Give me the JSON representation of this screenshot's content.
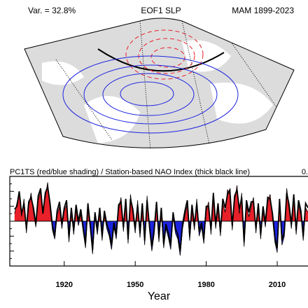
{
  "header": {
    "left": "Var. = 32.8%",
    "center": "EOF1 SLP",
    "right": "MAM 1899-2023"
  },
  "chart_data": {
    "type": "area",
    "title": "PC1TS (red/blue shading) / Station-based NAO Index (thick black line)",
    "corner_text": "0.",
    "xlabel": "Year",
    "x": [
      1899,
      1900,
      1901,
      1902,
      1903,
      1904,
      1905,
      1906,
      1907,
      1908,
      1909,
      1910,
      1911,
      1912,
      1913,
      1914,
      1915,
      1916,
      1917,
      1918,
      1919,
      1920,
      1921,
      1922,
      1923,
      1924,
      1925,
      1926,
      1927,
      1928,
      1929,
      1930,
      1931,
      1932,
      1933,
      1934,
      1935,
      1936,
      1937,
      1938,
      1939,
      1940,
      1941,
      1942,
      1943,
      1944,
      1945,
      1946,
      1947,
      1948,
      1949,
      1950,
      1951,
      1952,
      1953,
      1954,
      1955,
      1956,
      1957,
      1958,
      1959,
      1960,
      1961,
      1962,
      1963,
      1964,
      1965,
      1966,
      1967,
      1968,
      1969,
      1970,
      1971,
      1972,
      1973,
      1974,
      1975,
      1976,
      1977,
      1978,
      1979,
      1980,
      1981,
      1982,
      1983,
      1984,
      1985,
      1986,
      1987,
      1988,
      1989,
      1990,
      1991,
      1992,
      1993,
      1994,
      1995,
      1996,
      1997,
      1998,
      1999,
      2000,
      2001,
      2002,
      2003,
      2004,
      2005,
      2006,
      2007,
      2008,
      2009,
      2010,
      2011,
      2012,
      2013,
      2014,
      2015,
      2016,
      2017,
      2018,
      2019,
      2020,
      2021,
      2022,
      2023
    ],
    "series": [
      {
        "pos_color": "#e8202a",
        "neg_color": "#1d24e0",
        "values": [
          0.5,
          1.2,
          1.8,
          0.3,
          1.5,
          -0.8,
          1.0,
          1.9,
          0.6,
          -0.4,
          1.4,
          2.0,
          0.8,
          1.6,
          2.6,
          0.9,
          -0.6,
          -1.2,
          0.4,
          1.0,
          -0.5,
          0.7,
          1.1,
          -1.4,
          0.6,
          -0.9,
          0.8,
          -0.3,
          0.5,
          -0.7,
          -1.8,
          0.9,
          -0.6,
          -2.2,
          0.3,
          -0.9,
          0.6,
          -1.3,
          0.4,
          -0.5,
          -1.0,
          -1.9,
          -0.4,
          -1.2,
          0.8,
          1.6,
          -0.7,
          1.2,
          -1.5,
          1.8,
          0.5,
          -0.8,
          1.4,
          -1.1,
          0.9,
          -1.6,
          1.7,
          -0.6,
          -2.0,
          -0.9,
          1.0,
          -1.4,
          0.6,
          -1.8,
          -0.5,
          -1.1,
          -1.9,
          0.3,
          -0.8,
          -1.2,
          -2.3,
          -0.5,
          0.4,
          1.1,
          -1.3,
          0.8,
          -0.6,
          1.5,
          -1.0,
          -0.4,
          -1.5,
          0.7,
          1.3,
          -0.9,
          1.6,
          -0.5,
          0.9,
          -1.0,
          1.2,
          0.6,
          2.1,
          1.8,
          -0.6,
          1.4,
          2.4,
          0.5,
          1.9,
          -1.7,
          1.1,
          0.3,
          1.0,
          1.6,
          -0.8,
          0.9,
          -1.2,
          0.7,
          -0.4,
          1.3,
          1.8,
          0.2,
          -1.4,
          -2.1,
          1.2,
          -1.6,
          -1.0,
          2.2,
          0.8,
          -0.5,
          1.5,
          -0.9,
          1.1,
          0.4,
          -1.3,
          0.9,
          0.6
        ]
      },
      {
        "color": "#000000",
        "values": [
          0.8,
          1.0,
          2.0,
          0.5,
          1.2,
          -0.5,
          1.3,
          1.6,
          0.9,
          -0.2,
          1.7,
          2.2,
          0.5,
          1.9,
          2.3,
          1.2,
          -0.3,
          -1.0,
          0.7,
          1.3,
          -0.2,
          0.9,
          1.4,
          -1.1,
          0.9,
          -0.6,
          1.1,
          0.0,
          0.8,
          -0.4,
          -1.5,
          1.2,
          -0.3,
          -1.9,
          0.6,
          -0.6,
          0.9,
          -1.0,
          0.7,
          -0.2,
          -0.7,
          -1.6,
          -0.1,
          -0.9,
          1.1,
          1.3,
          -0.4,
          1.5,
          -1.2,
          1.5,
          0.8,
          -0.5,
          1.1,
          -0.8,
          1.2,
          -1.3,
          1.4,
          -0.3,
          -1.7,
          -0.6,
          1.3,
          -1.1,
          0.9,
          -1.5,
          -0.2,
          -0.8,
          -1.6,
          0.6,
          -0.5,
          -0.9,
          -2.0,
          -0.2,
          0.7,
          1.4,
          -1.0,
          1.1,
          -0.3,
          1.2,
          -0.7,
          -0.1,
          -1.2,
          1.0,
          1.0,
          -0.6,
          1.9,
          -0.2,
          1.2,
          -0.7,
          1.5,
          0.9,
          1.8,
          2.1,
          -0.3,
          1.7,
          2.1,
          0.8,
          1.6,
          -1.4,
          1.4,
          0.6,
          1.3,
          1.3,
          -0.5,
          1.2,
          -0.9,
          1.0,
          -0.1,
          1.6,
          1.5,
          0.5,
          -1.1,
          -1.8,
          1.5,
          -1.3,
          -0.7,
          1.9,
          1.1,
          -0.2,
          1.8,
          -0.6,
          1.4,
          0.7,
          -1.0,
          1.2,
          0.9
        ]
      }
    ],
    "xlim": [
      1897,
      2023
    ],
    "ylim": [
      -3,
      3
    ],
    "xticks": [
      1920,
      1950,
      1980,
      2010
    ]
  }
}
